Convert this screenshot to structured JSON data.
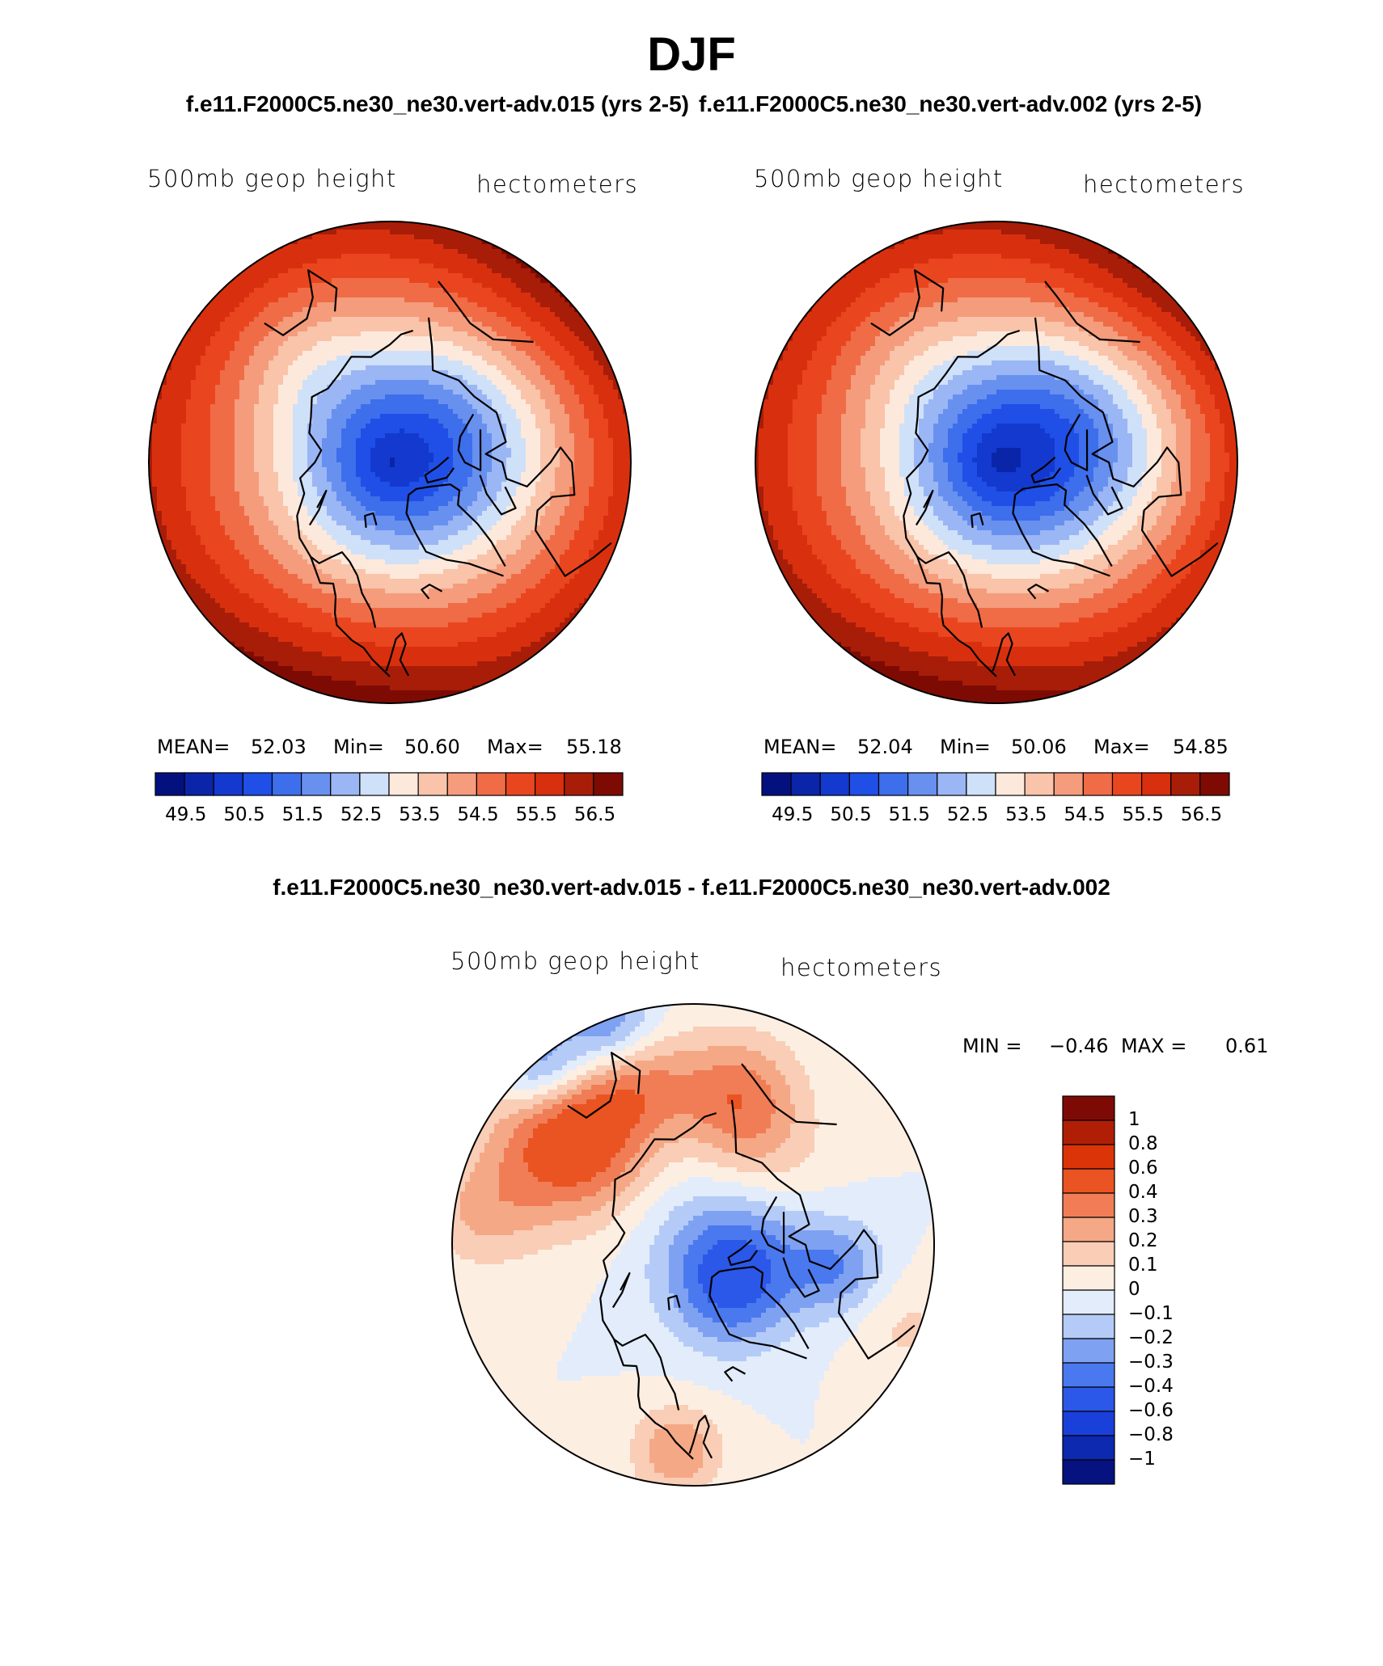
{
  "page": {
    "title": "DJF",
    "left_case": "f.e11.F2000C5.ne30_ne30.vert-adv.015 (yrs 2-5)",
    "right_case": "f.e11.F2000C5.ne30_ne30.vert-adv.002 (yrs 2-5)",
    "diff_title": "f.e11.F2000C5.ne30_ne30.vert-adv.015 - f.e11.F2000C5.ne30_ne30.vert-adv.002"
  },
  "colors": {
    "abs_palette": [
      "#05107f",
      "#0a25a8",
      "#1339cf",
      "#1f4fe6",
      "#3d6eeb",
      "#6890ef",
      "#9ab6f5",
      "#cfe0f9",
      "#fde9dc",
      "#f9c4aa",
      "#f49c7c",
      "#ef6c47",
      "#e9461f",
      "#d8300e",
      "#a81d08",
      "#7d0b04"
    ],
    "diff_palette": [
      "#06127f",
      "#0c29b0",
      "#1a40da",
      "#2b58e8",
      "#4a78ee",
      "#7ea1f2",
      "#b5cbf7",
      "#e2ecfb",
      "#fdeee2",
      "#f9cdb6",
      "#f5a886",
      "#f07d55",
      "#ea5322",
      "#db3409",
      "#b01f05",
      "#7e0a05"
    ]
  },
  "chart_data": [
    {
      "id": "left-map",
      "type": "heatmap",
      "projection": "polar-stereographic-north",
      "title": "500mb geop height",
      "units": "hectometers",
      "stats": {
        "mean_label": "MEAN=",
        "mean": "52.03",
        "min_label": "Min=",
        "min": "50.60",
        "max_label": "Max=",
        "max": "55.18"
      },
      "colorbar": {
        "orientation": "horizontal",
        "levels": [
          49.5,
          50.5,
          51.5,
          52.5,
          53.5,
          54.5,
          55.5,
          56.5
        ],
        "tick_labels": [
          "49.5",
          "50.5",
          "51.5",
          "52.5",
          "53.5",
          "54.5",
          "55.5",
          "56.5"
        ],
        "n_colors": 16
      },
      "field": {
        "base": 52.0,
        "lows": [
          {
            "lon": 255,
            "lat": 74,
            "amp": -1.4,
            "w": 22
          },
          {
            "lon": 140,
            "lat": 65,
            "amp": -0.6,
            "w": 14
          }
        ],
        "min": 50.6,
        "max": 55.18
      }
    },
    {
      "id": "right-map",
      "type": "heatmap",
      "projection": "polar-stereographic-north",
      "title": "500mb geop height",
      "units": "hectometers",
      "stats": {
        "mean_label": "MEAN=",
        "mean": "52.04",
        "min_label": "Min=",
        "min": "50.06",
        "max_label": "Max=",
        "max": "54.85"
      },
      "colorbar": {
        "orientation": "horizontal",
        "levels": [
          49.5,
          50.5,
          51.5,
          52.5,
          53.5,
          54.5,
          55.5,
          56.5
        ],
        "tick_labels": [
          "49.5",
          "50.5",
          "51.5",
          "52.5",
          "53.5",
          "54.5",
          "55.5",
          "56.5"
        ],
        "n_colors": 16
      },
      "field": {
        "base": 52.0,
        "lows": [
          {
            "lon": 255,
            "lat": 72,
            "amp": -1.9,
            "w": 22
          },
          {
            "lon": 140,
            "lat": 65,
            "amp": -0.4,
            "w": 14
          }
        ],
        "min": 50.06,
        "max": 54.85
      }
    },
    {
      "id": "diff-map",
      "type": "heatmap",
      "projection": "polar-stereographic-north",
      "title": "500mb geop height",
      "units": "hectometers",
      "stats": {
        "min_label": "MIN =",
        "min": "−0.46",
        "max_label": "MAX =",
        "max": "0.61"
      },
      "colorbar": {
        "orientation": "vertical",
        "levels": [
          1,
          0.8,
          0.6,
          0.4,
          0.3,
          0.2,
          0.1,
          0,
          -0.1,
          -0.2,
          -0.3,
          -0.4,
          -0.6,
          -0.8,
          -1
        ],
        "tick_labels": [
          "1",
          "0.8",
          "0.6",
          "0.4",
          "0.3",
          "0.2",
          "0.1",
          "0",
          "−0.1",
          "−0.2",
          "−0.3",
          "−0.4",
          "−0.6",
          "−0.8",
          "−1"
        ],
        "n_colors": 16
      },
      "field": {
        "min": -0.46,
        "max": 0.61
      }
    }
  ]
}
